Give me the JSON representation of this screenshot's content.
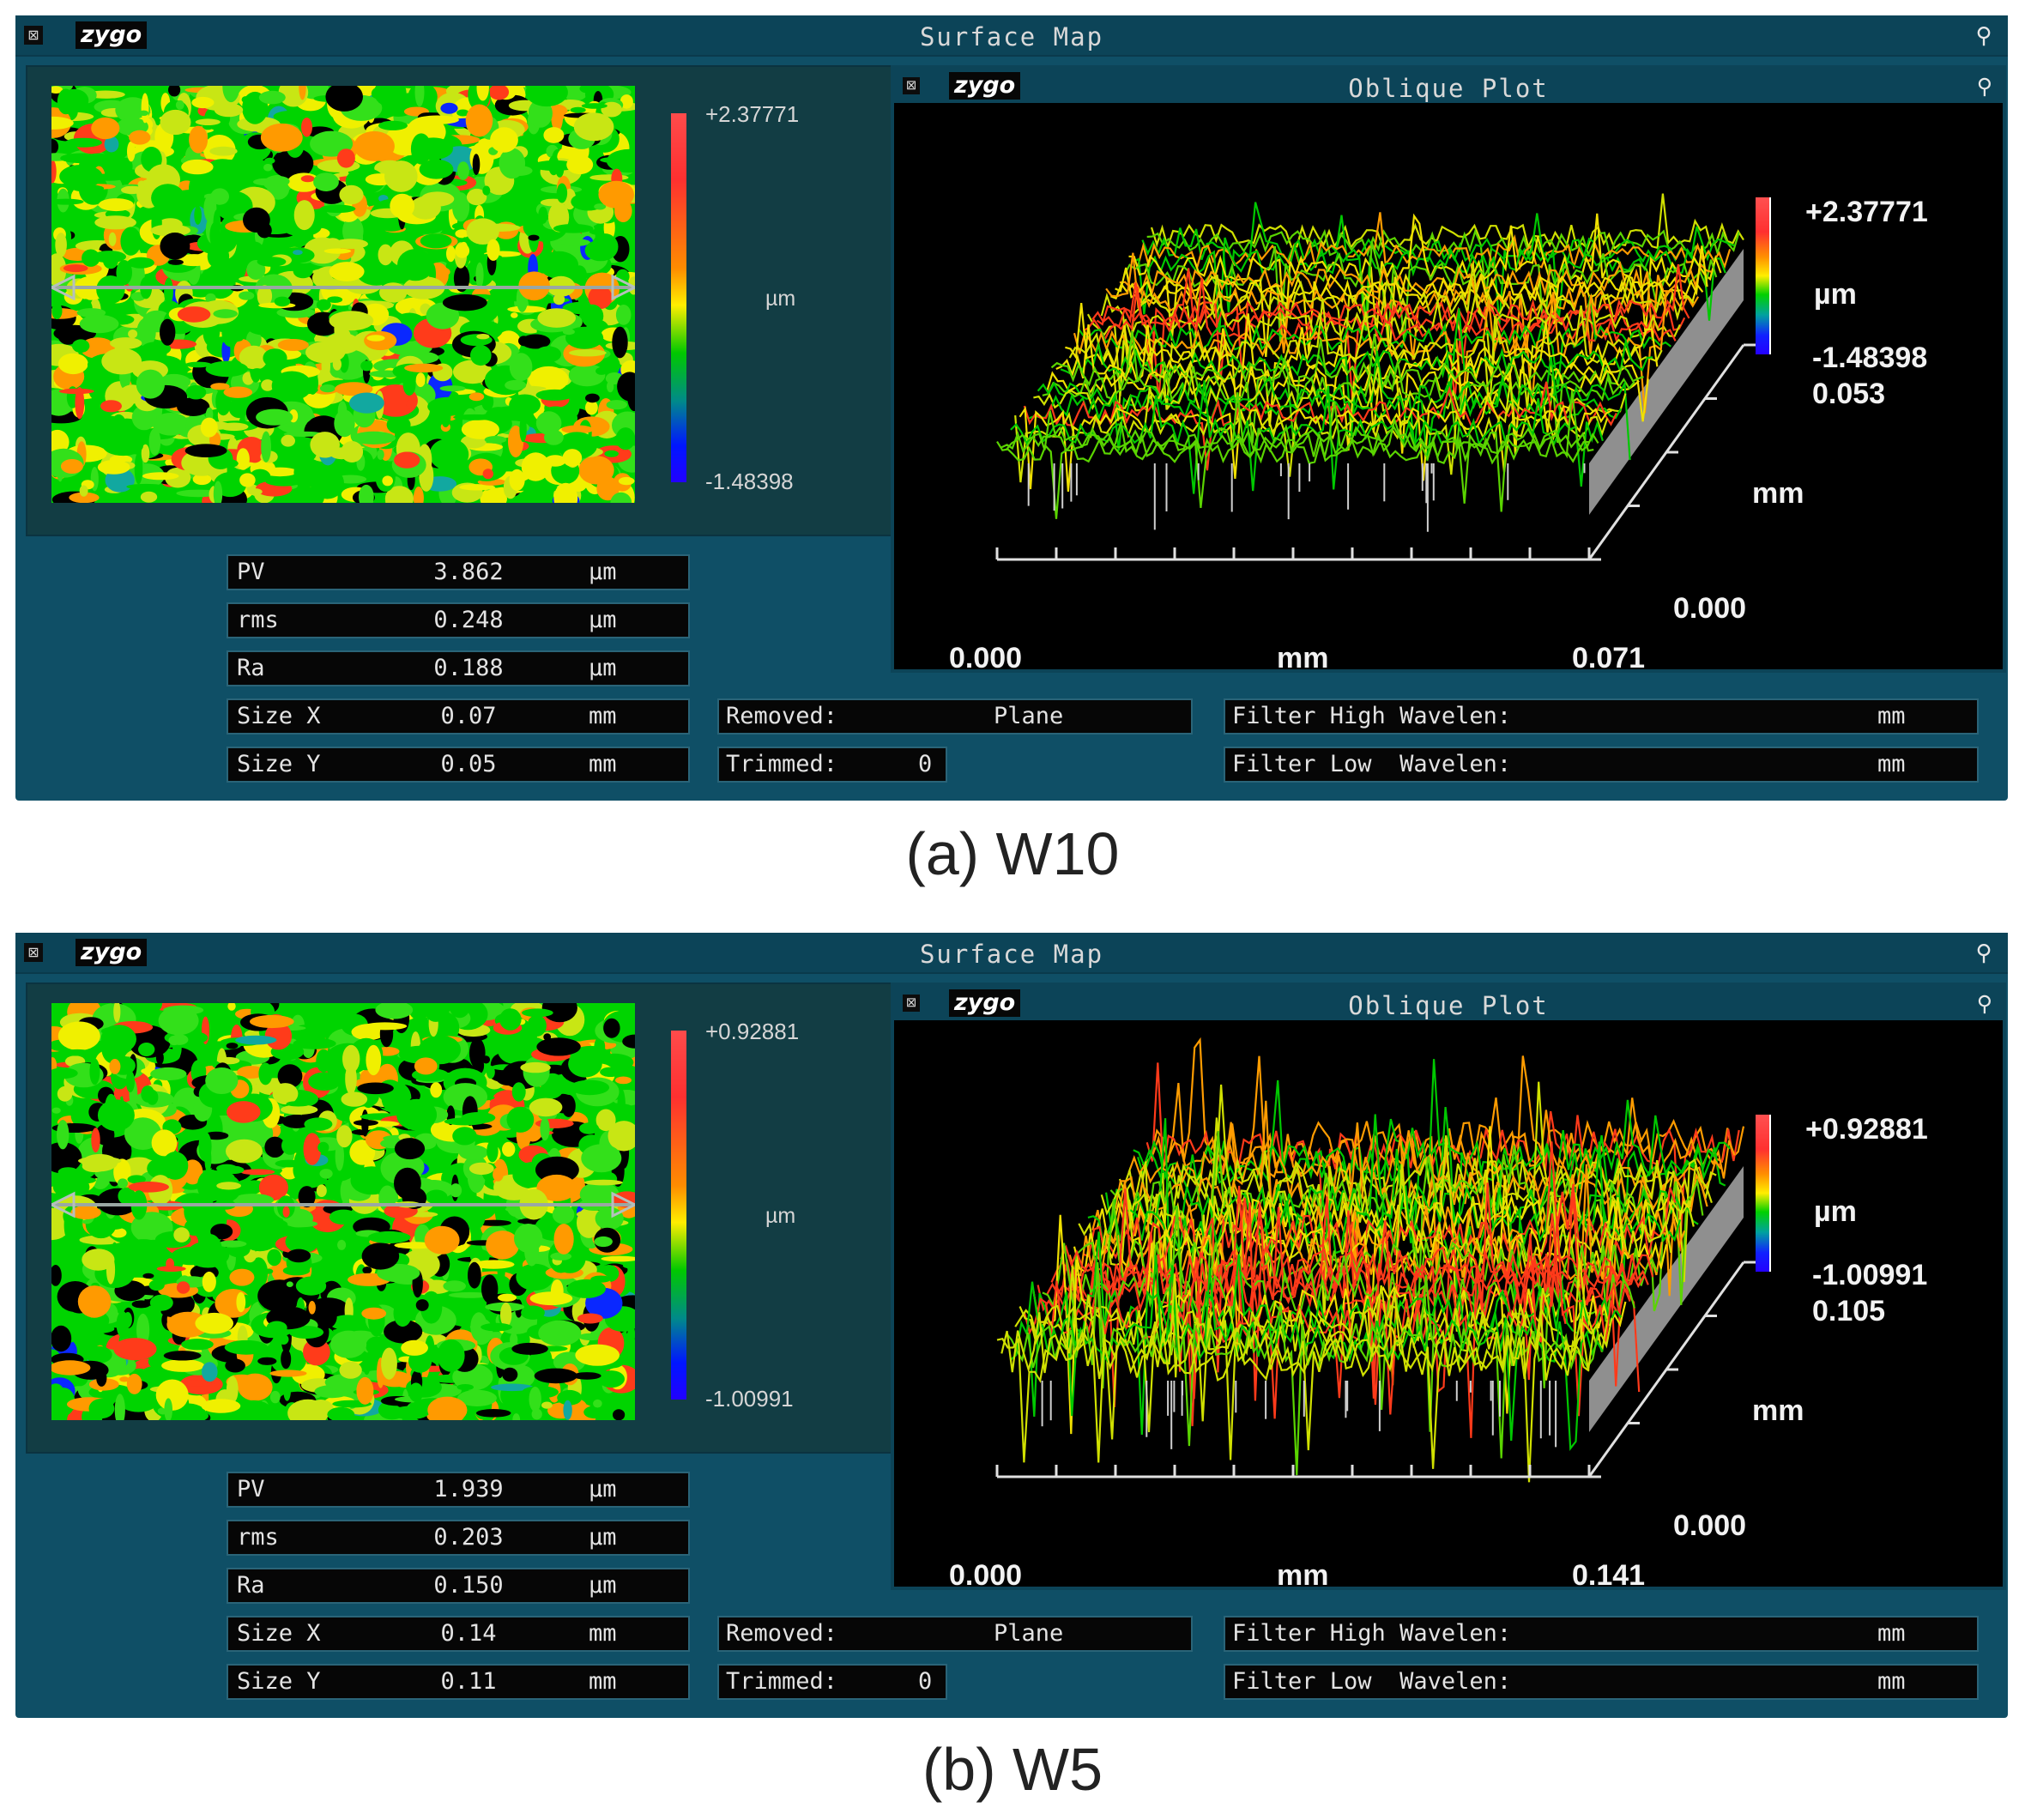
{
  "panels": [
    {
      "id": "a",
      "window_title": "Surface Map",
      "logo": "zygo",
      "close_icon": "⊠",
      "colorbar": {
        "max": "+2.37771",
        "min": "-1.48398",
        "unit": "µm"
      },
      "stats": [
        {
          "label": "PV",
          "value": "3.862",
          "unit": "µm"
        },
        {
          "label": "rms",
          "value": "0.248",
          "unit": "µm"
        },
        {
          "label": "Ra",
          "value": "0.188",
          "unit": "µm"
        },
        {
          "label": "Size X",
          "value": "0.07",
          "unit": "mm"
        },
        {
          "label": "Size Y",
          "value": "0.05",
          "unit": "mm"
        }
      ],
      "removed": {
        "label": "Removed:",
        "value": "Plane"
      },
      "trimmed": {
        "label": "Trimmed:",
        "value": "0"
      },
      "filter_high": {
        "label": "Filter High Wavelen:",
        "unit": "mm"
      },
      "filter_low": {
        "label": "Filter Low  Wavelen:",
        "unit": "mm"
      },
      "oblique": {
        "title": "Oblique Plot",
        "logo": "zygo",
        "z_max": "+2.37771",
        "z_unit": "µm",
        "z_min": "-1.48398",
        "y_max": "0.053",
        "y_unit": "mm",
        "y_min": "0.000",
        "x_min": "0.000",
        "x_unit": "mm",
        "x_max": "0.071"
      },
      "caption": "(a) W10"
    },
    {
      "id": "b",
      "window_title": "Surface Map",
      "logo": "zygo",
      "close_icon": "⊠",
      "colorbar": {
        "max": "+0.92881",
        "min": "-1.00991",
        "unit": "µm"
      },
      "stats": [
        {
          "label": "PV",
          "value": "1.939",
          "unit": "µm"
        },
        {
          "label": "rms",
          "value": "0.203",
          "unit": "µm"
        },
        {
          "label": "Ra",
          "value": "0.150",
          "unit": "µm"
        },
        {
          "label": "Size X",
          "value": "0.14",
          "unit": "mm"
        },
        {
          "label": "Size Y",
          "value": "0.11",
          "unit": "mm"
        }
      ],
      "removed": {
        "label": "Removed:",
        "value": "Plane"
      },
      "trimmed": {
        "label": "Trimmed:",
        "value": "0"
      },
      "filter_high": {
        "label": "Filter High Wavelen:",
        "unit": "mm"
      },
      "filter_low": {
        "label": "Filter Low  Wavelen:",
        "unit": "mm"
      },
      "oblique": {
        "title": "Oblique Plot",
        "logo": "zygo",
        "z_max": "+0.92881",
        "z_unit": "µm",
        "z_min": "-1.00991",
        "y_max": "0.105",
        "y_unit": "mm",
        "y_min": "0.000",
        "x_min": "0.000",
        "x_unit": "mm",
        "x_max": "0.141"
      },
      "caption": "(b) W5"
    }
  ],
  "colors": {
    "panel_bg": "#0f4f66",
    "titlebar": "#0c4458",
    "map_palette": [
      "#00d400",
      "#33e01a",
      "#c8e614",
      "#f0f000",
      "#ff9a00",
      "#ff3b1a",
      "#000000",
      "#0a28ff",
      "#12a8a0"
    ]
  }
}
